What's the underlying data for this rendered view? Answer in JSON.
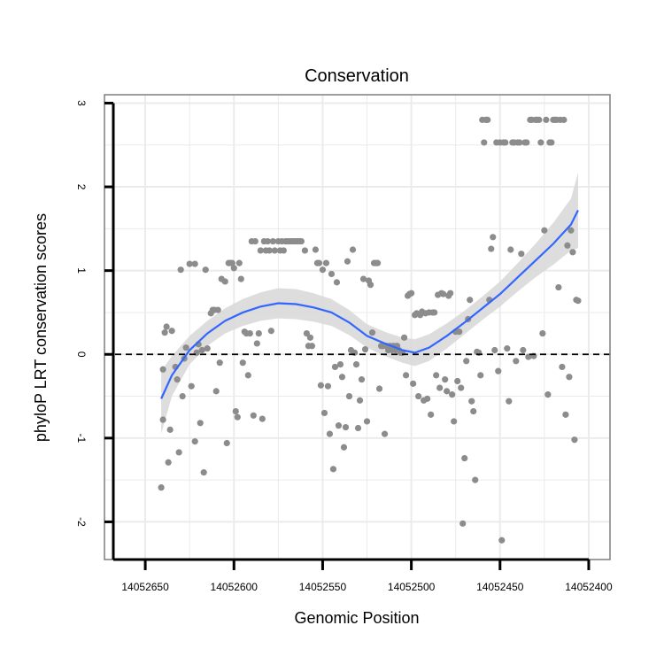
{
  "chart_data": {
    "type": "scatter",
    "title": "Conservation",
    "xlabel": "Genomic Position",
    "ylabel": "phyloP LRT conservation scores",
    "x_reversed": true,
    "xlim": [
      14052673,
      14052388
    ],
    "ylim": [
      -2.45,
      3.1
    ],
    "x_ticks": [
      14052650,
      14052600,
      14052550,
      14052500,
      14052450,
      14052400
    ],
    "x_tick_labels": [
      "14052650",
      "14052600",
      "14052550",
      "14052500",
      "14052450",
      "14052400"
    ],
    "y_ticks": [
      -2,
      -1,
      0,
      1,
      2,
      3
    ],
    "y_tick_labels": [
      "-2",
      "-1",
      "0",
      "1",
      "2",
      "3"
    ],
    "reference_line": {
      "y": 0,
      "style": "dashed"
    },
    "colors": {
      "points": "#8c8c8c",
      "smooth": "#3366ff",
      "ribbon": "#d9d9d9",
      "grid": "#ebebeb",
      "border": "#7f7f7f"
    },
    "points": [
      [
        14052641,
        -1.59
      ],
      [
        14052640,
        -0.78
      ],
      [
        14052640,
        -0.18
      ],
      [
        14052639,
        0.26
      ],
      [
        14052638,
        0.33
      ],
      [
        14052637,
        -1.29
      ],
      [
        14052636,
        -0.9
      ],
      [
        14052635,
        0.28
      ],
      [
        14052633,
        -0.15
      ],
      [
        14052632,
        -0.3
      ],
      [
        14052631,
        -1.17
      ],
      [
        14052630,
        1.01
      ],
      [
        14052629,
        -0.5
      ],
      [
        14052628,
        -0.05
      ],
      [
        14052627,
        0.08
      ],
      [
        14052625,
        1.08
      ],
      [
        14052624,
        -0.38
      ],
      [
        14052622,
        1.08
      ],
      [
        14052622,
        -1.04
      ],
      [
        14052621,
        0.02
      ],
      [
        14052620,
        0.12
      ],
      [
        14052619,
        -0.82
      ],
      [
        14052618,
        0.05
      ],
      [
        14052617,
        -1.41
      ],
      [
        14052616,
        1.01
      ],
      [
        14052615,
        0.07
      ],
      [
        14052613,
        0.49
      ],
      [
        14052612,
        0.53
      ],
      [
        14052611,
        0.53
      ],
      [
        14052610,
        -0.44
      ],
      [
        14052609,
        0.53
      ],
      [
        14052608,
        -0.1
      ],
      [
        14052607,
        0.9
      ],
      [
        14052605,
        0.87
      ],
      [
        14052604,
        -1.06
      ],
      [
        14052603,
        1.09
      ],
      [
        14052602,
        1.09
      ],
      [
        14052601,
        1.09
      ],
      [
        14052600,
        1.03
      ],
      [
        14052599,
        -0.68
      ],
      [
        14052598,
        -0.75
      ],
      [
        14052597,
        1.09
      ],
      [
        14052596,
        0.9
      ],
      [
        14052595,
        -0.1
      ],
      [
        14052594,
        0.27
      ],
      [
        14052593,
        0.25
      ],
      [
        14052592,
        -0.25
      ],
      [
        14052591,
        0.25
      ],
      [
        14052590,
        1.35
      ],
      [
        14052589,
        -0.73
      ],
      [
        14052588,
        1.35
      ],
      [
        14052587,
        0.13
      ],
      [
        14052586,
        0.25
      ],
      [
        14052585,
        1.24
      ],
      [
        14052584,
        -0.77
      ],
      [
        14052583,
        1.35
      ],
      [
        14052582,
        1.24
      ],
      [
        14052581,
        1.35
      ],
      [
        14052580,
        1.24
      ],
      [
        14052579,
        0.28
      ],
      [
        14052578,
        1.35
      ],
      [
        14052577,
        1.24
      ],
      [
        14052575,
        1.35
      ],
      [
        14052574,
        1.24
      ],
      [
        14052573,
        1.35
      ],
      [
        14052572,
        1.24
      ],
      [
        14052571,
        1.35
      ],
      [
        14052570,
        1.35
      ],
      [
        14052569,
        1.35
      ],
      [
        14052568,
        1.35
      ],
      [
        14052567,
        1.35
      ],
      [
        14052566,
        1.35
      ],
      [
        14052565,
        1.35
      ],
      [
        14052564,
        1.35
      ],
      [
        14052563,
        1.35
      ],
      [
        14052562,
        1.35
      ],
      [
        14052560,
        1.24
      ],
      [
        14052559,
        0.25
      ],
      [
        14052558,
        0.1
      ],
      [
        14052557,
        0.2
      ],
      [
        14052556,
        0.1
      ],
      [
        14052554,
        1.25
      ],
      [
        14052553,
        1.09
      ],
      [
        14052552,
        1.09
      ],
      [
        14052551,
        -0.37
      ],
      [
        14052550,
        1.01
      ],
      [
        14052549,
        -0.7
      ],
      [
        14052548,
        1.09
      ],
      [
        14052547,
        -0.38
      ],
      [
        14052546,
        -0.95
      ],
      [
        14052545,
        0.96
      ],
      [
        14052544,
        -1.37
      ],
      [
        14052543,
        -0.15
      ],
      [
        14052542,
        0.86
      ],
      [
        14052541,
        -0.85
      ],
      [
        14052540,
        -0.12
      ],
      [
        14052539,
        -0.27
      ],
      [
        14052538,
        -1.11
      ],
      [
        14052537,
        -0.87
      ],
      [
        14052536,
        1.11
      ],
      [
        14052535,
        -0.5
      ],
      [
        14052534,
        0.05
      ],
      [
        14052533,
        1.25
      ],
      [
        14052532,
        0.02
      ],
      [
        14052531,
        -0.12
      ],
      [
        14052530,
        -0.88
      ],
      [
        14052529,
        -0.55
      ],
      [
        14052528,
        -0.3
      ],
      [
        14052527,
        0.9
      ],
      [
        14052526,
        0.06
      ],
      [
        14052525,
        -0.8
      ],
      [
        14052524,
        0.88
      ],
      [
        14052523,
        0.83
      ],
      [
        14052522,
        0.26
      ],
      [
        14052521,
        1.09
      ],
      [
        14052520,
        1.09
      ],
      [
        14052519,
        1.09
      ],
      [
        14052518,
        -0.41
      ],
      [
        14052517,
        0.1
      ],
      [
        14052516,
        0.1
      ],
      [
        14052515,
        -0.95
      ],
      [
        14052514,
        0.1
      ],
      [
        14052513,
        0.05
      ],
      [
        14052512,
        0.1
      ],
      [
        14052511,
        0.05
      ],
      [
        14052510,
        0.1
      ],
      [
        14052509,
        0.05
      ],
      [
        14052508,
        0.1
      ],
      [
        14052507,
        0.05
      ],
      [
        14052506,
        0.02
      ],
      [
        14052505,
        0.02
      ],
      [
        14052504,
        0.2
      ],
      [
        14052503,
        -0.25
      ],
      [
        14052502,
        0.7
      ],
      [
        14052501,
        0.72
      ],
      [
        14052500,
        0.73
      ],
      [
        14052499,
        -0.35
      ],
      [
        14052498,
        0.47
      ],
      [
        14052497,
        0.49
      ],
      [
        14052496,
        -0.5
      ],
      [
        14052495,
        0.47
      ],
      [
        14052494,
        0.51
      ],
      [
        14052493,
        -0.55
      ],
      [
        14052492,
        0.49
      ],
      [
        14052491,
        -0.53
      ],
      [
        14052490,
        0.5
      ],
      [
        14052489,
        -0.72
      ],
      [
        14052488,
        0.5
      ],
      [
        14052487,
        0.5
      ],
      [
        14052486,
        -0.25
      ],
      [
        14052485,
        0.71
      ],
      [
        14052484,
        -0.4
      ],
      [
        14052483,
        0.73
      ],
      [
        14052482,
        0.72
      ],
      [
        14052481,
        -0.3
      ],
      [
        14052480,
        -0.44
      ],
      [
        14052479,
        0.7
      ],
      [
        14052478,
        0.73
      ],
      [
        14052477,
        -0.48
      ],
      [
        14052476,
        -0.8
      ],
      [
        14052475,
        0.27
      ],
      [
        14052474,
        -0.32
      ],
      [
        14052473,
        0.27
      ],
      [
        14052472,
        -0.4
      ],
      [
        14052471,
        -2.02
      ],
      [
        14052470,
        -1.24
      ],
      [
        14052469,
        -0.08
      ],
      [
        14052468,
        0.42
      ],
      [
        14052467,
        0.65
      ],
      [
        14052466,
        -0.56
      ],
      [
        14052465,
        -0.68
      ],
      [
        14052464,
        -1.5
      ],
      [
        14052463,
        0.03
      ],
      [
        14052462,
        0.02
      ],
      [
        14052461,
        -0.25
      ],
      [
        14052460,
        2.8
      ],
      [
        14052459,
        2.53
      ],
      [
        14052458,
        2.8
      ],
      [
        14052457,
        2.8
      ],
      [
        14052456,
        0.65
      ],
      [
        14052455,
        1.26
      ],
      [
        14052454,
        1.4
      ],
      [
        14052453,
        0.05
      ],
      [
        14052452,
        2.53
      ],
      [
        14052451,
        -0.2
      ],
      [
        14052450,
        2.53
      ],
      [
        14052449,
        -2.22
      ],
      [
        14052448,
        2.53
      ],
      [
        14052447,
        2.53
      ],
      [
        14052446,
        0.07
      ],
      [
        14052445,
        -0.56
      ],
      [
        14052444,
        1.25
      ],
      [
        14052443,
        2.53
      ],
      [
        14052442,
        2.53
      ],
      [
        14052441,
        -0.08
      ],
      [
        14052440,
        2.53
      ],
      [
        14052439,
        2.53
      ],
      [
        14052438,
        1.2
      ],
      [
        14052437,
        0.05
      ],
      [
        14052436,
        2.53
      ],
      [
        14052435,
        2.53
      ],
      [
        14052434,
        -0.03
      ],
      [
        14052433,
        2.8
      ],
      [
        14052432,
        2.8
      ],
      [
        14052431,
        -0.02
      ],
      [
        14052430,
        2.8
      ],
      [
        14052429,
        2.8
      ],
      [
        14052428,
        2.8
      ],
      [
        14052427,
        2.53
      ],
      [
        14052426,
        0.25
      ],
      [
        14052425,
        1.48
      ],
      [
        14052424,
        2.8
      ],
      [
        14052423,
        -0.48
      ],
      [
        14052422,
        2.53
      ],
      [
        14052421,
        2.53
      ],
      [
        14052420,
        2.8
      ],
      [
        14052419,
        2.8
      ],
      [
        14052418,
        2.8
      ],
      [
        14052417,
        0.8
      ],
      [
        14052416,
        2.8
      ],
      [
        14052415,
        -0.15
      ],
      [
        14052414,
        2.8
      ],
      [
        14052413,
        -0.72
      ],
      [
        14052412,
        1.3
      ],
      [
        14052411,
        -0.27
      ],
      [
        14052410,
        1.48
      ],
      [
        14052409,
        1.22
      ],
      [
        14052408,
        -1.02
      ],
      [
        14052407,
        0.65
      ],
      [
        14052406,
        0.64
      ]
    ],
    "smooth_line": [
      [
        14052641,
        -0.53
      ],
      [
        14052635,
        -0.25
      ],
      [
        14052625,
        0.05
      ],
      [
        14052615,
        0.25
      ],
      [
        14052605,
        0.4
      ],
      [
        14052595,
        0.5
      ],
      [
        14052585,
        0.57
      ],
      [
        14052575,
        0.61
      ],
      [
        14052565,
        0.6
      ],
      [
        14052555,
        0.56
      ],
      [
        14052545,
        0.5
      ],
      [
        14052535,
        0.38
      ],
      [
        14052525,
        0.22
      ],
      [
        14052515,
        0.13
      ],
      [
        14052505,
        0.05
      ],
      [
        14052498,
        0.02
      ],
      [
        14052490,
        0.08
      ],
      [
        14052480,
        0.22
      ],
      [
        14052470,
        0.38
      ],
      [
        14052460,
        0.55
      ],
      [
        14052450,
        0.72
      ],
      [
        14052440,
        0.92
      ],
      [
        14052430,
        1.12
      ],
      [
        14052420,
        1.32
      ],
      [
        14052410,
        1.55
      ],
      [
        14052406,
        1.72
      ]
    ],
    "ribbon_upper": [
      [
        14052641,
        -0.2
      ],
      [
        14052635,
        -0.02
      ],
      [
        14052625,
        0.22
      ],
      [
        14052615,
        0.4
      ],
      [
        14052605,
        0.55
      ],
      [
        14052595,
        0.66
      ],
      [
        14052585,
        0.74
      ],
      [
        14052575,
        0.79
      ],
      [
        14052565,
        0.78
      ],
      [
        14052555,
        0.73
      ],
      [
        14052545,
        0.66
      ],
      [
        14052535,
        0.53
      ],
      [
        14052525,
        0.36
      ],
      [
        14052515,
        0.27
      ],
      [
        14052505,
        0.2
      ],
      [
        14052498,
        0.18
      ],
      [
        14052490,
        0.24
      ],
      [
        14052480,
        0.37
      ],
      [
        14052470,
        0.52
      ],
      [
        14052460,
        0.69
      ],
      [
        14052450,
        0.87
      ],
      [
        14052440,
        1.09
      ],
      [
        14052430,
        1.32
      ],
      [
        14052420,
        1.57
      ],
      [
        14052410,
        1.86
      ],
      [
        14052406,
        2.17
      ]
    ],
    "ribbon_lower": [
      [
        14052641,
        -0.95
      ],
      [
        14052635,
        -0.5
      ],
      [
        14052625,
        -0.12
      ],
      [
        14052615,
        0.1
      ],
      [
        14052605,
        0.25
      ],
      [
        14052595,
        0.34
      ],
      [
        14052585,
        0.4
      ],
      [
        14052575,
        0.43
      ],
      [
        14052565,
        0.42
      ],
      [
        14052555,
        0.39
      ],
      [
        14052545,
        0.34
      ],
      [
        14052535,
        0.23
      ],
      [
        14052525,
        0.08
      ],
      [
        14052515,
        -0.02
      ],
      [
        14052505,
        -0.1
      ],
      [
        14052498,
        -0.14
      ],
      [
        14052490,
        -0.08
      ],
      [
        14052480,
        0.07
      ],
      [
        14052470,
        0.24
      ],
      [
        14052460,
        0.41
      ],
      [
        14052450,
        0.57
      ],
      [
        14052440,
        0.75
      ],
      [
        14052430,
        0.92
      ],
      [
        14052420,
        1.07
      ],
      [
        14052410,
        1.24
      ],
      [
        14052406,
        1.27
      ]
    ]
  }
}
